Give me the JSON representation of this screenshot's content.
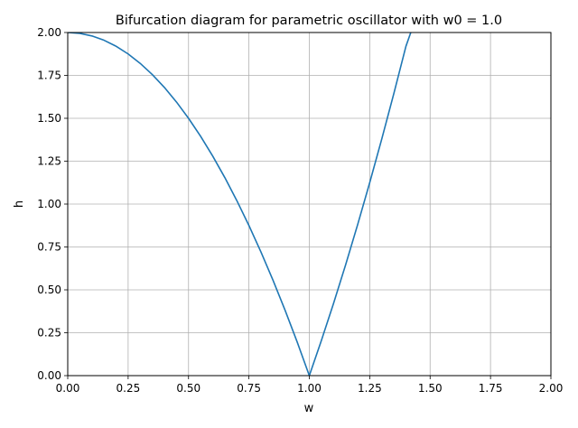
{
  "chart_data": {
    "type": "line",
    "title": "Bifurcation diagram for parametric oscillator with w0 = 1.0",
    "xlabel": "w",
    "ylabel": "h",
    "xlim": [
      0.0,
      2.0
    ],
    "ylim": [
      0.0,
      2.0
    ],
    "x_ticks": [
      "0.00",
      "0.25",
      "0.50",
      "0.75",
      "1.00",
      "1.25",
      "1.50",
      "1.75",
      "2.00"
    ],
    "y_ticks": [
      "0.00",
      "0.25",
      "0.50",
      "0.75",
      "1.00",
      "1.25",
      "1.50",
      "1.75",
      "2.00"
    ],
    "grid": true,
    "series": [
      {
        "color": "#1f77b4",
        "x": [
          0.0,
          0.05,
          0.1,
          0.15,
          0.2,
          0.25,
          0.3,
          0.35,
          0.4,
          0.45,
          0.5,
          0.55,
          0.6,
          0.65,
          0.7,
          0.75,
          0.8,
          0.85,
          0.9,
          0.95,
          1.0,
          1.05,
          1.1,
          1.15,
          1.2,
          1.25,
          1.3,
          1.35,
          1.4,
          1.42
        ],
        "y": [
          2.0,
          1.995,
          1.98,
          1.955,
          1.92,
          1.875,
          1.82,
          1.755,
          1.68,
          1.595,
          1.5,
          1.395,
          1.28,
          1.155,
          1.02,
          0.875,
          0.72,
          0.555,
          0.38,
          0.195,
          0.0,
          0.205,
          0.42,
          0.645,
          0.88,
          1.125,
          1.38,
          1.645,
          1.92,
          2.0
        ]
      }
    ]
  }
}
